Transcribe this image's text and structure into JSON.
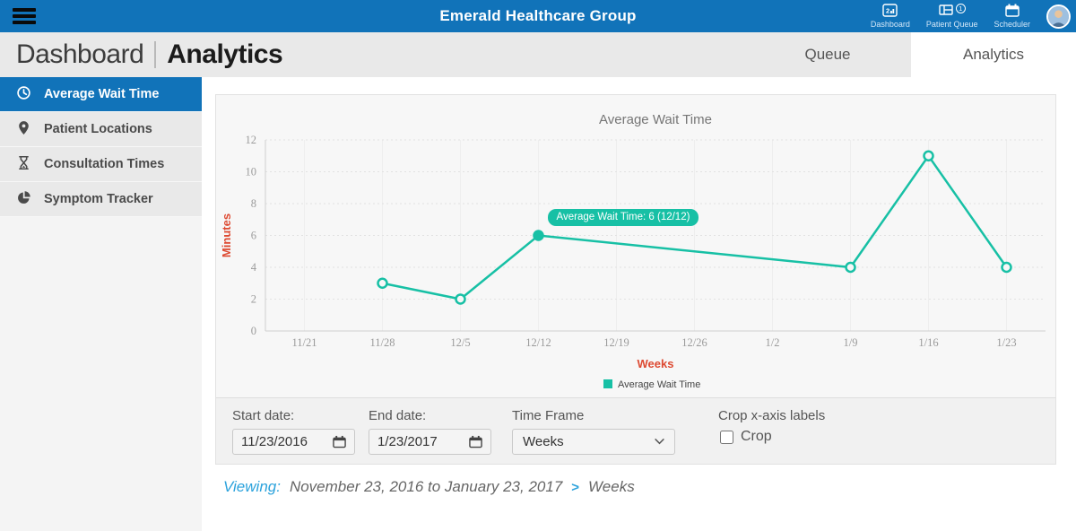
{
  "navbar": {
    "title": "Emerald Healthcare Group",
    "items": [
      {
        "label": "Dashboard"
      },
      {
        "label": "Patient Queue",
        "badge": "1"
      },
      {
        "label": "Scheduler"
      }
    ]
  },
  "header": {
    "breadcrumb_primary": "Dashboard",
    "breadcrumb_secondary": "Analytics",
    "tabs": [
      {
        "label": "Queue",
        "active": false
      },
      {
        "label": "Analytics",
        "active": true
      }
    ]
  },
  "sidebar": {
    "items": [
      {
        "label": "Average Wait Time",
        "icon": "clock-icon",
        "active": true
      },
      {
        "label": "Patient Locations",
        "icon": "map-pin-icon",
        "active": false
      },
      {
        "label": "Consultation Times",
        "icon": "hourglass-icon",
        "active": false
      },
      {
        "label": "Symptom Tracker",
        "icon": "pie-chart-icon",
        "active": false
      }
    ]
  },
  "chart_data": {
    "type": "line",
    "title": "Average Wait Time",
    "xlabel": "Weeks",
    "ylabel": "Minutes",
    "categories": [
      "11/21",
      "11/28",
      "12/5",
      "12/12",
      "12/19",
      "12/26",
      "1/2",
      "1/9",
      "1/16",
      "1/23"
    ],
    "values": [
      null,
      3,
      2,
      6,
      null,
      null,
      null,
      4,
      11,
      4
    ],
    "ylim": [
      0,
      12
    ],
    "ytick_step": 2,
    "grid": true,
    "legend_position": "bottom",
    "legend": [
      {
        "label": "Average Wait Time",
        "color": "#17c0a5"
      }
    ],
    "line_color": "#17c0a5",
    "axis_title_color": "#dd4a32",
    "highlight_index": 3,
    "tooltip": "Average Wait Time: 6 (12/12)"
  },
  "controls": {
    "start_date": {
      "label": "Start date:",
      "value": "11/23/2016"
    },
    "end_date": {
      "label": "End date:",
      "value": "1/23/2017"
    },
    "time_frame": {
      "label": "Time Frame",
      "value": "Weeks"
    },
    "crop": {
      "label": "Crop x-axis labels",
      "checkbox_label": "Crop",
      "checked": false
    }
  },
  "viewing": {
    "label": "Viewing:",
    "range": "November 23, 2016 to January 23, 2017",
    "separator": ">",
    "mode": "Weeks"
  },
  "colors": {
    "primary_blue": "#1173b9",
    "teal": "#17c0a5",
    "axis_red": "#dd4a32",
    "link_blue": "#2ba2dc"
  }
}
